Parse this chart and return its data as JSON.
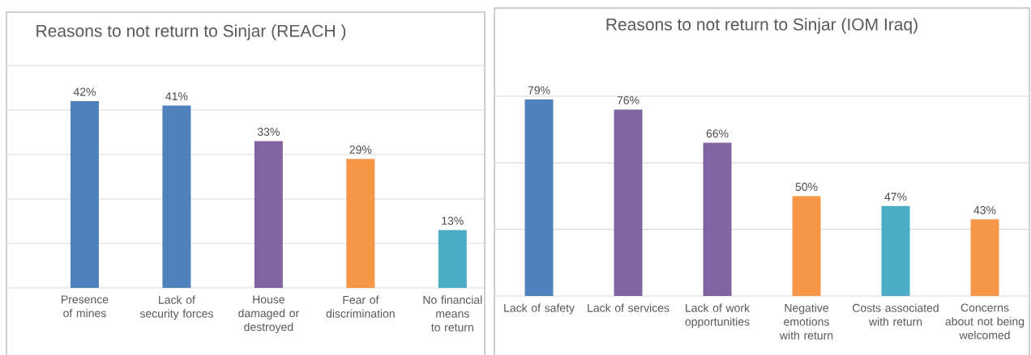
{
  "chart_data": [
    {
      "type": "bar",
      "title": "Reasons to not return to Sinjar (REACH )",
      "categories": [
        "Presence of mines",
        "Lack of security forces",
        "House damaged or destroyed",
        "Fear of discrimination",
        "No financial means to return"
      ],
      "values": [
        42,
        41,
        33,
        29,
        13
      ],
      "colors": [
        "#4f81bd",
        "#4f81bd",
        "#8064a2",
        "#f79646",
        "#4bacc6"
      ],
      "value_labels": [
        "42%",
        "41%",
        "33%",
        "29%",
        "13%"
      ],
      "ylim": [
        0,
        50
      ],
      "yticks": [
        {
          "value": 0,
          "label": null
        },
        {
          "value": 10,
          "label": null
        },
        {
          "value": 20,
          "label": null
        },
        {
          "value": 30,
          "label": null
        },
        {
          "value": 40,
          "label": null
        },
        {
          "value": 50,
          "label": null
        }
      ],
      "tick_labels": "x",
      "grid": "y"
    },
    {
      "type": "bar",
      "title": "Reasons to not return to Sinjar (IOM Iraq)",
      "categories": [
        "Lack of safety",
        "Lack of services",
        "Lack of work opportunities",
        "Negative emotions with return",
        "Costs associated with return",
        "Concerns about not being welcomed"
      ],
      "values": [
        79,
        76,
        66,
        50,
        47,
        43
      ],
      "colors": [
        "#4f81bd",
        "#8064a2",
        "#8064a2",
        "#f79646",
        "#4bacc6",
        "#f79646"
      ],
      "value_labels": [
        "79%",
        "76%",
        "66%",
        "50%",
        "47%",
        "43%"
      ],
      "ylim": [
        20,
        80
      ],
      "yticks": [
        {
          "value": 20,
          "label": null
        },
        {
          "value": 40,
          "label": null
        },
        {
          "value": 60,
          "label": null
        },
        {
          "value": 80,
          "label": null
        }
      ],
      "tick_labels": "x",
      "grid": "y"
    }
  ]
}
